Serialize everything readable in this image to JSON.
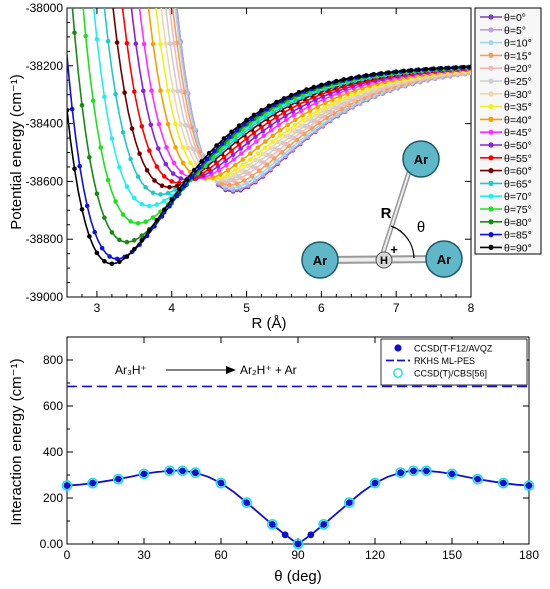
{
  "chart_data": [
    {
      "type": "line",
      "xlabel": "R (Å)",
      "ylabel": "Potential energy (cm⁻¹)",
      "xlim": [
        2.6,
        8
      ],
      "ylim": [
        -39000,
        -38000
      ],
      "xticks": [
        3,
        4,
        5,
        6,
        7,
        8
      ],
      "yticks": [
        -39000,
        -38800,
        -38600,
        -38400,
        -38200,
        -38000
      ],
      "ytick_labels": [
        "-39000",
        "-38800",
        "-38600",
        "-38400",
        "-38200",
        "-38000"
      ],
      "legend_position": "right",
      "series": [
        {
          "name": "θ=0°",
          "color": "#7a3fc0",
          "theta": 0
        },
        {
          "name": "θ=5°",
          "color": "#b9a0e0",
          "theta": 5
        },
        {
          "name": "θ=10°",
          "color": "#a0d8f0",
          "theta": 10
        },
        {
          "name": "θ=15°",
          "color": "#f5a058",
          "theta": 15
        },
        {
          "name": "θ=20°",
          "color": "#f5b8b8",
          "theta": 20
        },
        {
          "name": "θ=25°",
          "color": "#cfcfcf",
          "theta": 25
        },
        {
          "name": "θ=30°",
          "color": "#f0d8a8",
          "theta": 30
        },
        {
          "name": "θ=35°",
          "color": "#f0f020",
          "theta": 35
        },
        {
          "name": "θ=40°",
          "color": "#f5a000",
          "theta": 40
        },
        {
          "name": "θ=45°",
          "color": "#ff30ff",
          "theta": 45
        },
        {
          "name": "θ=50°",
          "color": "#8a20e0",
          "theta": 50
        },
        {
          "name": "θ=55°",
          "color": "#ff0000",
          "theta": 55
        },
        {
          "name": "θ=60°",
          "color": "#700000",
          "theta": 60
        },
        {
          "name": "θ=65°",
          "color": "#20c8c8",
          "theta": 65
        },
        {
          "name": "θ=70°",
          "color": "#20f0f0",
          "theta": 70
        },
        {
          "name": "θ=75°",
          "color": "#20e020",
          "theta": 75
        },
        {
          "name": "θ=80°",
          "color": "#158a15",
          "theta": 80
        },
        {
          "name": "θ=85°",
          "color": "#1010e0",
          "theta": 85
        },
        {
          "name": "θ=90°",
          "color": "#000000",
          "theta": 90
        }
      ],
      "curve_minima": [
        {
          "theta": 0,
          "R_min": 4.82,
          "E_min": -38635
        },
        {
          "theta": 5,
          "R_min": 4.82,
          "E_min": -38630
        },
        {
          "theta": 10,
          "R_min": 4.8,
          "E_min": -38622
        },
        {
          "theta": 15,
          "R_min": 4.77,
          "E_min": -38612
        },
        {
          "theta": 20,
          "R_min": 4.73,
          "E_min": -38602
        },
        {
          "theta": 25,
          "R_min": 4.68,
          "E_min": -38596
        },
        {
          "theta": 30,
          "R_min": 4.62,
          "E_min": -38592
        },
        {
          "theta": 35,
          "R_min": 4.55,
          "E_min": -38590
        },
        {
          "theta": 40,
          "R_min": 4.45,
          "E_min": -38590
        },
        {
          "theta": 45,
          "R_min": 4.33,
          "E_min": -38590
        },
        {
          "theta": 50,
          "R_min": 4.22,
          "E_min": -38595
        },
        {
          "theta": 55,
          "R_min": 4.1,
          "E_min": -38605
        },
        {
          "theta": 60,
          "R_min": 3.97,
          "E_min": -38620
        },
        {
          "theta": 65,
          "R_min": 3.85,
          "E_min": -38645
        },
        {
          "theta": 70,
          "R_min": 3.7,
          "E_min": -38685
        },
        {
          "theta": 75,
          "R_min": 3.55,
          "E_min": -38745
        },
        {
          "theta": 80,
          "R_min": 3.4,
          "E_min": -38810
        },
        {
          "theta": 85,
          "R_min": 3.27,
          "E_min": -38868
        },
        {
          "theta": 90,
          "R_min": 3.2,
          "E_min": -38885
        }
      ],
      "asymptote": -38195,
      "inset_labels": {
        "atom1": "Ar",
        "atom2": "Ar",
        "atom3": "Ar",
        "hydrogen": "H",
        "charge": "+",
        "R": "R",
        "theta": "θ"
      }
    },
    {
      "type": "line",
      "xlabel": "θ (deg)",
      "ylabel": "Interaction energy (cm⁻¹)",
      "xlim": [
        0,
        180
      ],
      "ylim": [
        0,
        900
      ],
      "xticks": [
        0,
        30,
        60,
        90,
        120,
        150,
        180
      ],
      "yticks": [
        0,
        200,
        400,
        600,
        800
      ],
      "ytick_labels": [
        "0.00",
        "200",
        "400",
        "600",
        "800"
      ],
      "legend_position": "top-right",
      "annotation": {
        "reactant": "Ar₃H⁺",
        "products": "Ar₂H⁺ + Ar"
      },
      "series": [
        {
          "name": "CCSD(T-F12/AVQZ",
          "style": "filled-circle",
          "color": "#1010d0",
          "x": [
            0,
            10,
            20,
            30,
            40,
            45,
            50,
            60,
            70,
            80,
            85,
            90,
            95,
            100,
            110,
            120,
            130,
            135,
            140,
            150,
            160,
            170,
            180
          ],
          "y": [
            254,
            265,
            282,
            305,
            318,
            318,
            310,
            265,
            180,
            85,
            40,
            0,
            40,
            85,
            180,
            265,
            310,
            318,
            318,
            305,
            282,
            265,
            254
          ]
        },
        {
          "name": "RKHS ML-PES",
          "style": "line",
          "color": "#1010d0",
          "x": [
            0,
            5,
            10,
            15,
            20,
            25,
            30,
            35,
            40,
            45,
            50,
            55,
            60,
            65,
            70,
            75,
            80,
            85,
            90,
            95,
            100,
            105,
            110,
            115,
            120,
            125,
            130,
            135,
            140,
            145,
            150,
            155,
            160,
            165,
            170,
            175,
            180
          ],
          "y": [
            254,
            258,
            265,
            273,
            282,
            293,
            305,
            313,
            318,
            320,
            310,
            292,
            265,
            226,
            180,
            132,
            85,
            40,
            0,
            40,
            85,
            132,
            180,
            226,
            265,
            292,
            310,
            320,
            318,
            313,
            305,
            293,
            282,
            273,
            265,
            258,
            254
          ]
        },
        {
          "name": "RKHS ML-PES",
          "style": "dashed",
          "color": "#1010d0",
          "x": [
            0,
            180
          ],
          "y": [
            685,
            685
          ]
        },
        {
          "name": "CCSD(T)/CBS[56]",
          "style": "open-circle",
          "color": "#20e0e0",
          "x": [
            0,
            10,
            20,
            30,
            40,
            45,
            50,
            60,
            70,
            80,
            90,
            100,
            110,
            120,
            130,
            135,
            140,
            150,
            160,
            170,
            180
          ],
          "y": [
            254,
            265,
            282,
            305,
            318,
            318,
            310,
            265,
            180,
            85,
            0,
            85,
            180,
            265,
            310,
            318,
            318,
            305,
            282,
            265,
            254
          ]
        }
      ]
    }
  ]
}
